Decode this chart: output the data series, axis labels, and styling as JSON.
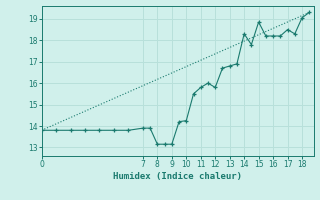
{
  "title": "",
  "xlabel": "Humidex (Indice chaleur)",
  "ylabel": "",
  "bg_color": "#d0f0eb",
  "line_color": "#1a7a6e",
  "grid_color": "#b8e0da",
  "xlim": [
    0,
    18.8
  ],
  "ylim": [
    12.6,
    19.6
  ],
  "xticks": [
    0,
    7,
    8,
    9,
    10,
    11,
    12,
    13,
    14,
    15,
    16,
    17,
    18
  ],
  "yticks": [
    13,
    14,
    15,
    16,
    17,
    18,
    19
  ],
  "data_x": [
    0,
    1,
    2,
    3,
    4,
    5,
    6,
    7,
    7.5,
    8,
    8.5,
    9,
    9.5,
    10,
    10.5,
    11,
    11.5,
    12,
    12.5,
    13,
    13.5,
    14,
    14.5,
    15,
    15.5,
    16,
    16.5,
    17,
    17.5,
    18,
    18.5
  ],
  "data_y": [
    13.8,
    13.8,
    13.8,
    13.8,
    13.8,
    13.8,
    13.8,
    13.9,
    13.9,
    13.15,
    13.15,
    13.15,
    14.2,
    14.25,
    15.5,
    15.8,
    16.0,
    15.8,
    16.7,
    16.8,
    16.9,
    18.3,
    17.8,
    18.85,
    18.2,
    18.2,
    18.2,
    18.5,
    18.3,
    19.05,
    19.3
  ],
  "trend_x": [
    0,
    18.5
  ],
  "trend_y": [
    13.8,
    19.3
  ]
}
